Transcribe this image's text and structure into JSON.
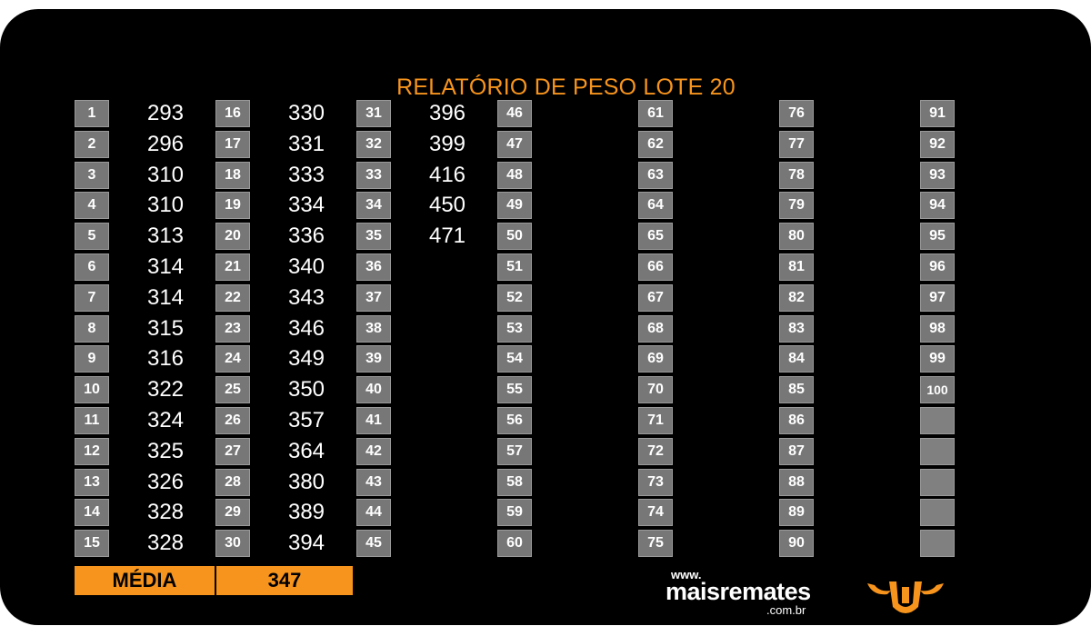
{
  "title": "RELATÓRIO DE PESO LOTE 20",
  "columns": [
    {
      "numbers": [
        "1",
        "2",
        "3",
        "4",
        "5",
        "6",
        "7",
        "8",
        "9",
        "10",
        "11",
        "12",
        "13",
        "14",
        "15"
      ],
      "weights": [
        "293",
        "296",
        "310",
        "310",
        "313",
        "314",
        "314",
        "315",
        "316",
        "322",
        "324",
        "325",
        "326",
        "328",
        "328"
      ]
    },
    {
      "numbers": [
        "16",
        "17",
        "18",
        "19",
        "20",
        "21",
        "22",
        "23",
        "24",
        "25",
        "26",
        "27",
        "28",
        "29",
        "30"
      ],
      "weights": [
        "330",
        "331",
        "333",
        "334",
        "336",
        "340",
        "343",
        "346",
        "349",
        "350",
        "357",
        "364",
        "380",
        "389",
        "394"
      ]
    },
    {
      "numbers": [
        "31",
        "32",
        "33",
        "34",
        "35",
        "36",
        "37",
        "38",
        "39",
        "40",
        "41",
        "42",
        "43",
        "44",
        "45"
      ],
      "weights": [
        "396",
        "399",
        "416",
        "450",
        "471",
        "",
        "",
        "",
        "",
        "",
        "",
        "",
        "",
        "",
        ""
      ]
    },
    {
      "numbers": [
        "46",
        "47",
        "48",
        "49",
        "50",
        "51",
        "52",
        "53",
        "54",
        "55",
        "56",
        "57",
        "58",
        "59",
        "60"
      ],
      "weights": [
        "",
        "",
        "",
        "",
        "",
        "",
        "",
        "",
        "",
        "",
        "",
        "",
        "",
        "",
        ""
      ]
    },
    {
      "numbers": [
        "61",
        "62",
        "63",
        "64",
        "65",
        "66",
        "67",
        "68",
        "69",
        "70",
        "71",
        "72",
        "73",
        "74",
        "75"
      ],
      "weights": [
        "",
        "",
        "",
        "",
        "",
        "",
        "",
        "",
        "",
        "",
        "",
        "",
        "",
        "",
        ""
      ]
    },
    {
      "numbers": [
        "76",
        "77",
        "78",
        "79",
        "80",
        "81",
        "82",
        "83",
        "84",
        "85",
        "86",
        "87",
        "88",
        "89",
        "90"
      ],
      "weights": [
        "",
        "",
        "",
        "",
        "",
        "",
        "",
        "",
        "",
        "",
        "",
        "",
        "",
        "",
        ""
      ]
    },
    {
      "numbers": [
        "91",
        "92",
        "93",
        "94",
        "95",
        "96",
        "97",
        "98",
        "99",
        "100",
        "",
        "",
        "",
        "",
        ""
      ],
      "weights": [
        "",
        "",
        "",
        "",
        "",
        "",
        "",
        "",
        "",
        "",
        "",
        "",
        "",
        "",
        ""
      ]
    }
  ],
  "media": {
    "label": "MÉDIA",
    "value": "347"
  },
  "logo": {
    "www": "www.",
    "name": "maisremates",
    "tld": ".com.br",
    "icon": "bull-head-icon"
  },
  "colors": {
    "accent": "#f7941d",
    "background": "#000000",
    "box": "#777777",
    "text": "#ffffff"
  }
}
